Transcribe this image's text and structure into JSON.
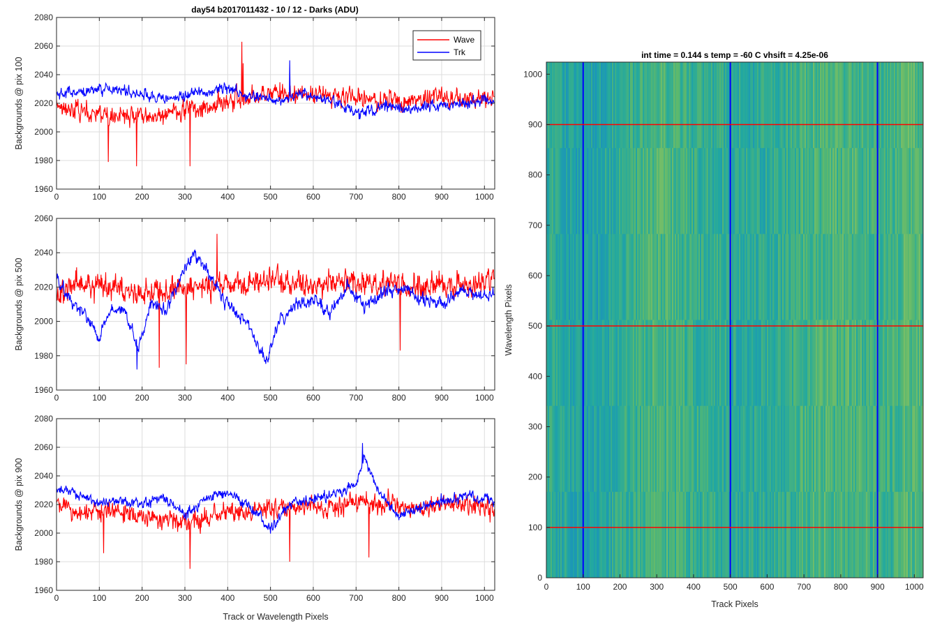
{
  "figure": {
    "title": "day54 b2017011432 - 10 / 12 - Darks (ADU)",
    "shared_xlabel": "Track or Wavelength Pixels"
  },
  "colors": {
    "wave": "#ff0000",
    "trk": "#0000ff",
    "grid": "#dcdcdc",
    "axis": "#262626"
  },
  "chart_data": [
    {
      "type": "line",
      "ylabel": "Backgrounds @ pix 100",
      "xlim": [
        0,
        1024
      ],
      "ylim": [
        1960,
        2080
      ],
      "xticks": [
        0,
        100,
        200,
        300,
        400,
        500,
        600,
        700,
        800,
        900,
        1000
      ],
      "yticks": [
        1960,
        1980,
        2000,
        2020,
        2040,
        2060,
        2080
      ],
      "grid": true,
      "legend": {
        "placement": "top-right",
        "entries": [
          "Wave",
          "Trk"
        ]
      },
      "series": [
        {
          "name": "Wave",
          "color": "#ff0000",
          "x": [
            0,
            64,
            128,
            192,
            256,
            320,
            384,
            448,
            512,
            576,
            640,
            704,
            768,
            832,
            896,
            960,
            1024
          ],
          "values": [
            2020,
            2014,
            2010,
            2012,
            2011,
            2016,
            2020,
            2022,
            2028,
            2026,
            2024,
            2024,
            2021,
            2022,
            2024,
            2023,
            2024
          ],
          "amplitude": 11,
          "outliers": [
            [
              121,
              1979
            ],
            [
              187,
              1976
            ],
            [
              312,
              1976
            ],
            [
              433,
              2063
            ],
            [
              436,
              2048
            ]
          ]
        },
        {
          "name": "Trk",
          "color": "#0000ff",
          "x": [
            0,
            64,
            128,
            192,
            256,
            320,
            384,
            448,
            512,
            576,
            640,
            704,
            768,
            832,
            896,
            960,
            1024
          ],
          "values": [
            2026,
            2028,
            2030,
            2027,
            2022,
            2026,
            2030,
            2026,
            2022,
            2026,
            2022,
            2012,
            2018,
            2016,
            2018,
            2020,
            2022
          ],
          "amplitude": 6,
          "outliers": [
            [
              545,
              2050
            ]
          ]
        }
      ]
    },
    {
      "type": "line",
      "ylabel": "Backgrounds @ pix 500",
      "xlim": [
        0,
        1024
      ],
      "ylim": [
        1960,
        2060
      ],
      "xticks": [
        0,
        100,
        200,
        300,
        400,
        500,
        600,
        700,
        800,
        900,
        1000
      ],
      "yticks": [
        1960,
        1980,
        2000,
        2020,
        2040,
        2060
      ],
      "grid": true,
      "series": [
        {
          "name": "Wave",
          "color": "#ff0000",
          "x": [
            0,
            64,
            128,
            192,
            256,
            320,
            384,
            448,
            512,
            576,
            640,
            704,
            768,
            832,
            896,
            960,
            1024
          ],
          "values": [
            2018,
            2022,
            2020,
            2016,
            2018,
            2020,
            2022,
            2022,
            2024,
            2022,
            2022,
            2022,
            2022,
            2020,
            2022,
            2022,
            2024
          ],
          "amplitude": 12,
          "outliers": [
            [
              240,
              1973
            ],
            [
              303,
              1975
            ],
            [
              375,
              2051
            ],
            [
              803,
              1983
            ]
          ]
        },
        {
          "name": "Trk",
          "color": "#0000ff",
          "x": [
            0,
            40,
            64,
            100,
            128,
            160,
            192,
            220,
            256,
            300,
            320,
            350,
            384,
            420,
            448,
            470,
            490,
            520,
            560,
            600,
            640,
            680,
            720,
            760,
            800,
            850,
            900,
            950,
            1000,
            1024
          ],
          "values": [
            2025,
            2010,
            2004,
            1990,
            2008,
            2005,
            1985,
            2010,
            2005,
            2032,
            2040,
            2030,
            2015,
            2005,
            2000,
            1985,
            1977,
            2000,
            2010,
            2012,
            2006,
            2020,
            2008,
            2016,
            2020,
            2014,
            2010,
            2018,
            2014,
            2018
          ],
          "amplitude": 6,
          "outliers": [
            [
              188,
              1972
            ]
          ]
        }
      ]
    },
    {
      "type": "line",
      "ylabel": "Backgrounds @ pix 900",
      "xlabel": "Track or Wavelength Pixels",
      "xlim": [
        0,
        1024
      ],
      "ylim": [
        1960,
        2080
      ],
      "xticks": [
        0,
        100,
        200,
        300,
        400,
        500,
        600,
        700,
        800,
        900,
        1000
      ],
      "yticks": [
        1960,
        1980,
        2000,
        2020,
        2040,
        2060,
        2080
      ],
      "grid": true,
      "series": [
        {
          "name": "Wave",
          "color": "#ff0000",
          "x": [
            0,
            64,
            128,
            192,
            256,
            320,
            384,
            448,
            512,
            576,
            640,
            704,
            768,
            832,
            896,
            960,
            1024
          ],
          "values": [
            2020,
            2014,
            2016,
            2012,
            2010,
            2008,
            2014,
            2016,
            2018,
            2018,
            2018,
            2022,
            2020,
            2018,
            2020,
            2020,
            2018
          ],
          "amplitude": 11,
          "outliers": [
            [
              110,
              1986
            ],
            [
              312,
              1975
            ],
            [
              545,
              1980
            ],
            [
              730,
              1983
            ]
          ]
        },
        {
          "name": "Trk",
          "color": "#0000ff",
          "x": [
            0,
            50,
            100,
            150,
            200,
            250,
            300,
            350,
            400,
            450,
            500,
            550,
            600,
            650,
            700,
            720,
            750,
            800,
            850,
            900,
            950,
            1000,
            1024
          ],
          "values": [
            2030,
            2026,
            2022,
            2022,
            2020,
            2026,
            2012,
            2024,
            2028,
            2020,
            2002,
            2022,
            2024,
            2028,
            2034,
            2052,
            2030,
            2012,
            2018,
            2022,
            2026,
            2024,
            2022
          ],
          "amplitude": 6,
          "outliers": [
            [
              715,
              2063
            ]
          ]
        }
      ]
    },
    {
      "type": "heatmap",
      "title": "int time = 0.144 s   temp = -60 C   vhsift = 4.25e-06",
      "xlabel": "Track Pixels",
      "ylabel": "Wavelength Pixels",
      "xlim": [
        0,
        1024
      ],
      "ylim": [
        0,
        1024
      ],
      "xticks": [
        0,
        100,
        200,
        300,
        400,
        500,
        600,
        700,
        800,
        900,
        1000
      ],
      "yticks": [
        0,
        100,
        200,
        300,
        400,
        500,
        600,
        700,
        800,
        900,
        1000
      ],
      "colormap": [
        "#1a8fc0",
        "#22a8a0",
        "#5bb86e",
        "#a6c85c"
      ],
      "vertical_lines": {
        "color": "#0000ff",
        "x": [
          100,
          500,
          900
        ]
      },
      "horizontal_lines": {
        "color": "#ff0000",
        "y": [
          100,
          500,
          900
        ]
      }
    }
  ]
}
